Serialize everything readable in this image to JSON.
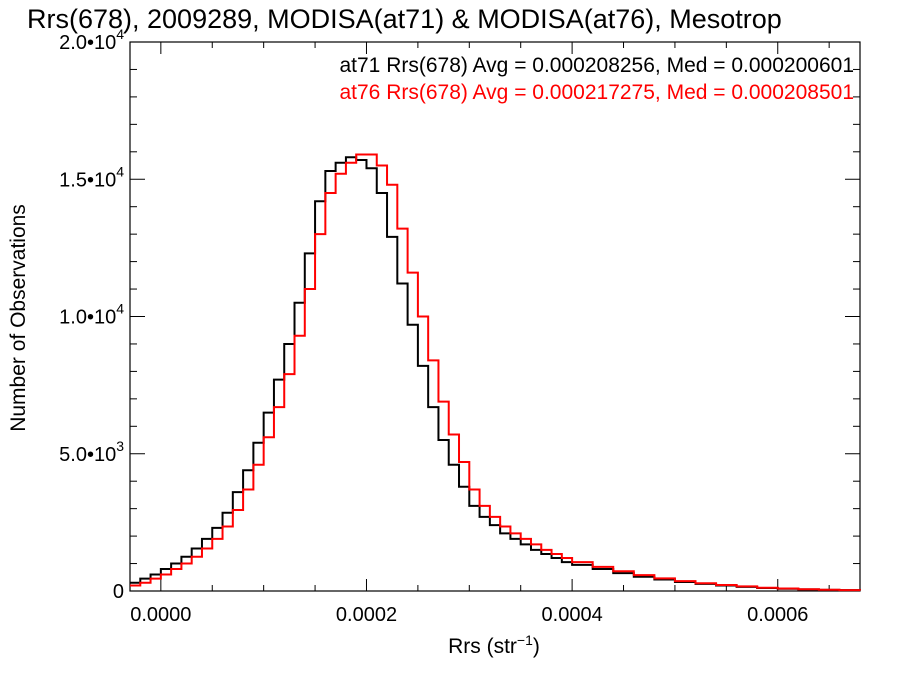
{
  "chart_data": {
    "type": "line",
    "title": "Rrs(678), 2009289, MODISA(at71) & MODISA(at76), Mesotrop",
    "xlabel": {
      "base": "Rrs (str",
      "sup": "−1",
      "tail": ")"
    },
    "ylabel": "Number of Observations",
    "xlim": [
      -3e-05,
      0.00068
    ],
    "ylim": [
      0,
      20000
    ],
    "x_ticks": [
      {
        "value": 0.0,
        "label": "0.0000"
      },
      {
        "value": 0.0002,
        "label": "0.0002"
      },
      {
        "value": 0.0004,
        "label": "0.0004"
      },
      {
        "value": 0.0006,
        "label": "0.0006"
      }
    ],
    "y_ticks": [
      {
        "value": 0,
        "mant": "0",
        "exp": ""
      },
      {
        "value": 5000,
        "mant": "5.0•10",
        "exp": "3"
      },
      {
        "value": 10000,
        "mant": "1.0•10",
        "exp": "4"
      },
      {
        "value": 15000,
        "mant": "1.5•10",
        "exp": "4"
      },
      {
        "value": 20000,
        "mant": "2.0•10",
        "exp": "4"
      }
    ],
    "x_minor_step": 5e-05,
    "y_minor_step": 1000,
    "grid": false,
    "legend_position": "top-right",
    "series": [
      {
        "name": "at71",
        "legend": "at71 Rrs(678) Avg = 0.000208256, Med = 0.000200601",
        "color": "#000000",
        "x": [
          -3e-05,
          -2e-05,
          -1e-05,
          0.0,
          1e-05,
          2e-05,
          3e-05,
          4e-05,
          5e-05,
          6e-05,
          7e-05,
          8e-05,
          9e-05,
          0.0001,
          0.00011,
          0.00012,
          0.00013,
          0.00014,
          0.00015,
          0.00016,
          0.00017,
          0.00018,
          0.00019,
          0.0002,
          0.00021,
          0.00022,
          0.00023,
          0.00024,
          0.00025,
          0.00026,
          0.00027,
          0.00028,
          0.00029,
          0.0003,
          0.00031,
          0.00032,
          0.00033,
          0.00034,
          0.00035,
          0.00036,
          0.00037,
          0.00038,
          0.00039,
          0.0004,
          0.00042,
          0.00044,
          0.00046,
          0.00048,
          0.0005,
          0.00052,
          0.00054,
          0.00056,
          0.00058,
          0.0006,
          0.00062,
          0.00064,
          0.00066,
          0.00068
        ],
        "y": [
          300,
          450,
          600,
          800,
          1000,
          1250,
          1550,
          1900,
          2300,
          2850,
          3600,
          4400,
          5400,
          6500,
          7700,
          9000,
          10500,
          12300,
          14200,
          15300,
          15600,
          15800,
          15700,
          15400,
          14500,
          12900,
          11200,
          9700,
          8200,
          6700,
          5500,
          4600,
          3800,
          3100,
          2700,
          2400,
          2100,
          1900,
          1700,
          1500,
          1350,
          1200,
          1050,
          950,
          800,
          650,
          520,
          420,
          330,
          260,
          200,
          150,
          110,
          80,
          60,
          40,
          30,
          20
        ]
      },
      {
        "name": "at76",
        "legend": "at76 Rrs(678) Avg = 0.000217275, Med = 0.000208501",
        "color": "#ff0000",
        "x": [
          -3e-05,
          -2e-05,
          -1e-05,
          0.0,
          1e-05,
          2e-05,
          3e-05,
          4e-05,
          5e-05,
          6e-05,
          7e-05,
          8e-05,
          9e-05,
          0.0001,
          0.00011,
          0.00012,
          0.00013,
          0.00014,
          0.00015,
          0.00016,
          0.00017,
          0.00018,
          0.00019,
          0.0002,
          0.00021,
          0.00022,
          0.00023,
          0.00024,
          0.00025,
          0.00026,
          0.00027,
          0.00028,
          0.00029,
          0.0003,
          0.00031,
          0.00032,
          0.00033,
          0.00034,
          0.00035,
          0.00036,
          0.00037,
          0.00038,
          0.00039,
          0.0004,
          0.00042,
          0.00044,
          0.00046,
          0.00048,
          0.0005,
          0.00052,
          0.00054,
          0.00056,
          0.00058,
          0.0006,
          0.00062,
          0.00064,
          0.00066,
          0.00068
        ],
        "y": [
          200,
          300,
          450,
          600,
          800,
          1000,
          1250,
          1550,
          1900,
          2350,
          2950,
          3700,
          4600,
          5600,
          6700,
          7900,
          9300,
          11000,
          13000,
          14500,
          15200,
          15600,
          15900,
          15900,
          15500,
          14800,
          13200,
          11600,
          10000,
          8400,
          6900,
          5700,
          4700,
          3700,
          3100,
          2700,
          2350,
          2100,
          1900,
          1700,
          1500,
          1350,
          1200,
          1050,
          880,
          720,
          580,
          460,
          360,
          280,
          220,
          170,
          120,
          90,
          65,
          45,
          30,
          20
        ]
      }
    ]
  }
}
